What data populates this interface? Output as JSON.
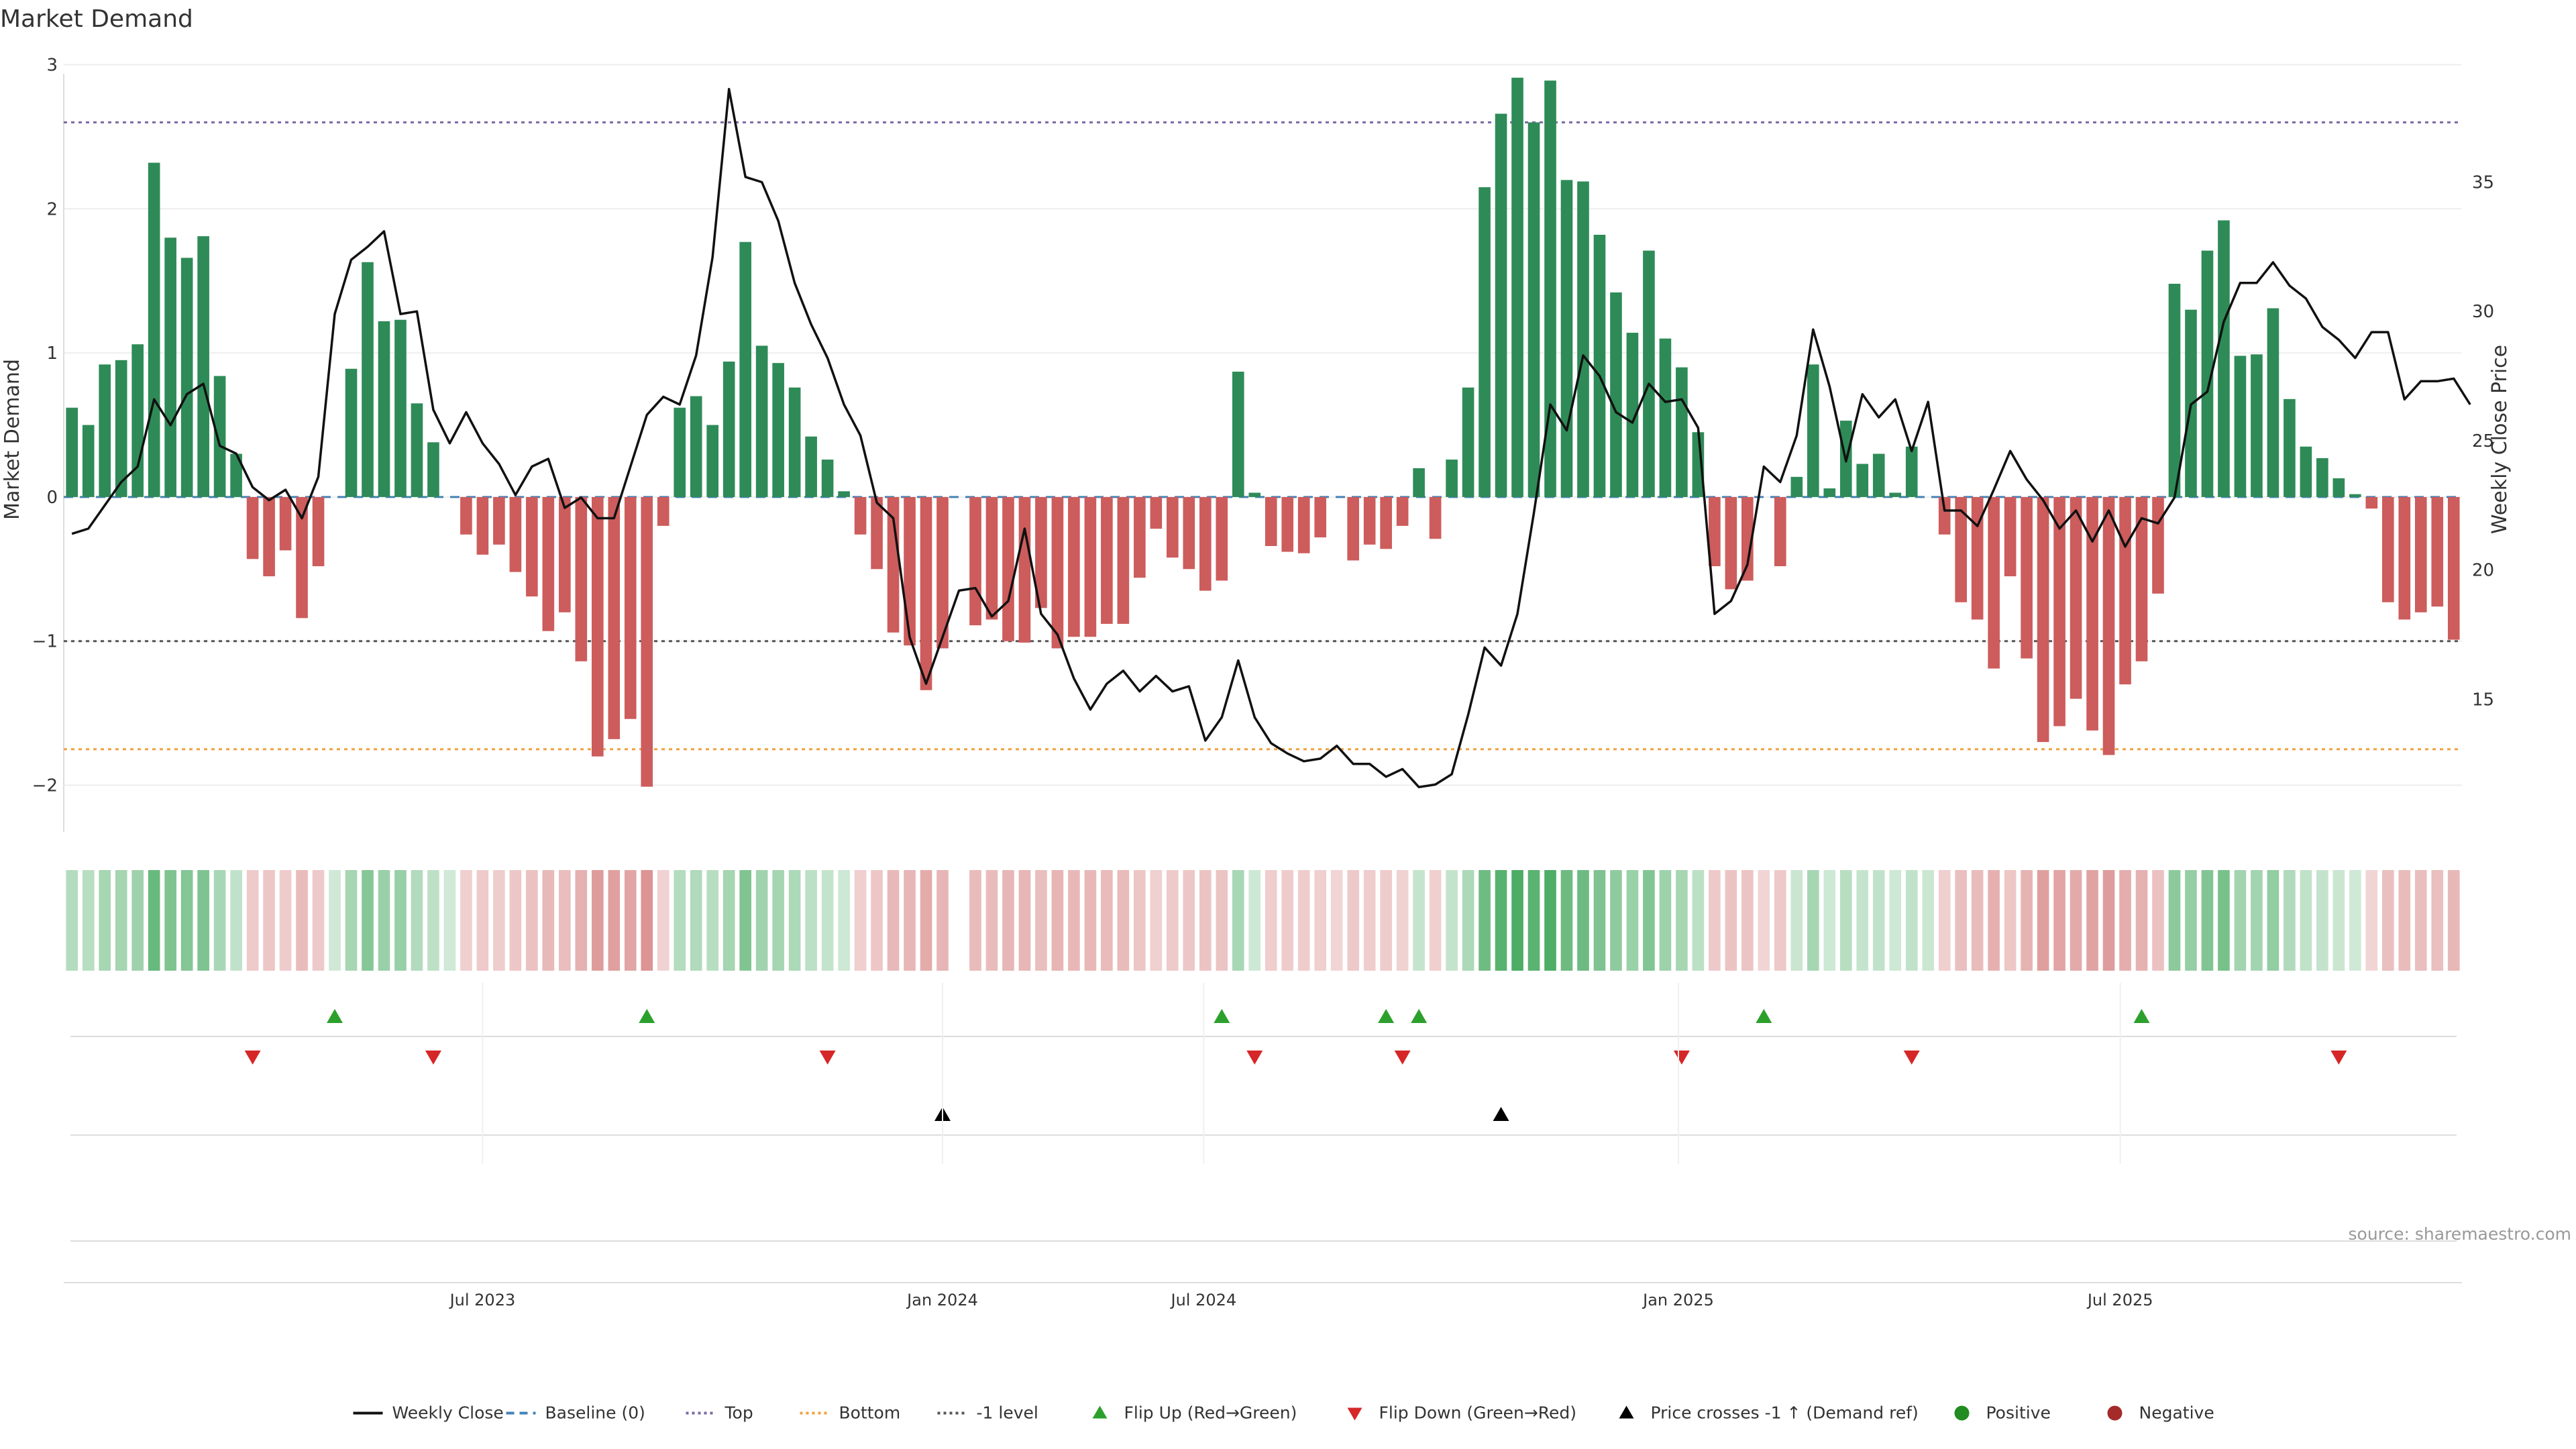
{
  "chart_data": {
    "type": "bar",
    "title": "Market Demand",
    "ylabel": "Market Demand",
    "y2label": "Weekly Close Price",
    "ylim": [
      -2.3,
      3.1
    ],
    "y_ticks": [
      "−2",
      "−1",
      "0",
      "1",
      "2",
      "3"
    ],
    "y2lim": [
      10,
      40.1
    ],
    "y2_ticks": [
      "15",
      "20",
      "25",
      "30",
      "35"
    ],
    "x_ticks": [
      "Jul 2023",
      "Jan 2024",
      "Jul 2024",
      "Jan 2025",
      "Jul 2025"
    ],
    "source": "source: sharemaestro.com",
    "levels": {
      "top": 2.6,
      "bottom": -1.75,
      "minus_one": -1,
      "baseline": 0
    },
    "series": [
      {
        "name": "Market Demand",
        "values": [
          0.62,
          0.5,
          0.92,
          0.95,
          1.06,
          2.32,
          1.8,
          1.66,
          1.81,
          0.84,
          0.3,
          -0.43,
          -0.55,
          -0.37,
          -0.84,
          -0.48,
          0,
          0.89,
          1.63,
          1.22,
          1.23,
          0.65,
          0.38,
          0,
          -0.26,
          -0.4,
          -0.33,
          -0.52,
          -0.69,
          -0.93,
          -0.8,
          -1.14,
          -1.8,
          -1.68,
          -1.54,
          -2.01,
          -0.2,
          0.62,
          0.7,
          0.5,
          0.94,
          1.77,
          1.05,
          0.93,
          0.76,
          0.42,
          0.26,
          0.04,
          -0.26,
          -0.5,
          -0.94,
          -1.03,
          -1.34,
          -1.05,
          0,
          -0.89,
          -0.85,
          -1.0,
          -1.01,
          -0.77,
          -1.05,
          -0.97,
          -0.97,
          -0.88,
          -0.88,
          -0.56,
          -0.22,
          -0.42,
          -0.5,
          -0.65,
          -0.58,
          0.87,
          0.03,
          -0.34,
          -0.38,
          -0.39,
          -0.28,
          0,
          -0.44,
          -0.33,
          -0.36,
          -0.2,
          0.2,
          -0.29,
          0.26,
          0.76,
          2.15,
          2.66,
          2.91,
          2.6,
          2.89,
          2.2,
          2.19,
          1.82,
          1.42,
          1.14,
          1.71,
          1.1,
          0.9,
          0.45,
          -0.48,
          -0.64,
          -0.58,
          0,
          -0.48,
          0.14,
          0.92,
          0.06,
          0.53,
          0.23,
          0.3,
          0.03,
          0.35,
          0,
          -0.26,
          -0.73,
          -0.85,
          -1.19,
          -0.55,
          -1.12,
          -1.7,
          -1.59,
          -1.4,
          -1.62,
          -1.79,
          -1.3,
          -1.14,
          -0.67,
          1.48,
          1.3,
          1.71,
          1.92,
          0.98,
          0.99,
          1.31,
          0.68,
          0.35,
          0.27,
          0.13,
          0.02,
          -0.08,
          -0.73,
          -0.85,
          -0.8,
          -0.76,
          -0.99
        ]
      },
      {
        "name": "Weekly Close",
        "values": [
          21.4,
          21.6,
          22.5,
          23.4,
          24,
          26.6,
          25.6,
          26.8,
          27.2,
          24.8,
          24.5,
          23.2,
          22.7,
          23.1,
          22,
          23.6,
          29.9,
          32,
          32.5,
          33.1,
          29.9,
          30,
          26.2,
          24.9,
          26.1,
          24.9,
          24.1,
          22.9,
          24,
          24.3,
          22.4,
          22.8,
          22,
          22,
          24,
          26,
          26.7,
          26.4,
          28.3,
          32.1,
          38.6,
          35.2,
          35,
          33.5,
          31.1,
          29.5,
          28.2,
          26.4,
          25.2,
          22.6,
          22,
          17.4,
          15.6,
          17.4,
          19.2,
          19.3,
          18.2,
          18.8,
          21.6,
          18.3,
          17.5,
          15.8,
          14.6,
          15.6,
          16.1,
          15.3,
          15.9,
          15.3,
          15.5,
          13.4,
          14.3,
          16.5,
          14.3,
          13.3,
          12.9,
          12.6,
          12.7,
          13.2,
          12.5,
          12.5,
          12,
          12.3,
          11.6,
          11.7,
          12.1,
          14.4,
          17,
          16.3,
          18.3,
          22.2,
          26.4,
          25.4,
          28.3,
          27.5,
          26.1,
          25.7,
          27.2,
          26.5,
          26.6,
          25.5,
          18.3,
          18.8,
          20.2,
          24,
          23.4,
          25.2,
          29.3,
          27.1,
          24.2,
          26.8,
          25.9,
          26.6,
          24.6,
          26.5,
          22.3,
          22.3,
          21.7,
          23.1,
          24.6,
          23.5,
          22.7,
          21.6,
          22.3,
          21.1,
          22.3,
          20.9,
          22,
          21.8,
          22.8,
          26.4,
          26.9,
          29.6,
          31.1,
          31.1,
          31.9,
          31,
          30.5,
          29.4,
          28.9,
          28.2,
          29.2,
          29.2,
          26.6,
          27.3,
          27.3,
          27.4,
          26.4
        ]
      }
    ],
    "shade_values": [
      0.62,
      0.5,
      0.92,
      0.95,
      1.06,
      2.32,
      1.8,
      1.66,
      1.81,
      0.84,
      0.3,
      -0.43,
      -0.55,
      -0.37,
      -0.84,
      -0.48,
      0,
      0.89,
      1.63,
      1.22,
      1.23,
      0.65,
      0.38,
      0,
      -0.26,
      -0.4,
      -0.33,
      -0.52,
      -0.69,
      -0.93,
      -0.8,
      -1.14,
      -1.8,
      -1.68,
      -1.54,
      -2.01,
      -0.2,
      0.62,
      0.7,
      0.5,
      0.94,
      1.77,
      1.05,
      0.93,
      0.76,
      0.42,
      0.26,
      0.04,
      -0.26,
      -0.5,
      -0.94,
      -1.03,
      -1.34,
      -1.05,
      null,
      -0.89,
      -0.85,
      -1.0,
      -1.01,
      -0.77,
      -1.05,
      -0.97,
      -0.97,
      -0.88,
      -0.88,
      -0.56,
      -0.22,
      -0.42,
      -0.5,
      -0.65,
      -0.58,
      0.87,
      0.03,
      -0.34,
      -0.38,
      -0.39,
      -0.28,
      -0.1,
      -0.44,
      -0.33,
      -0.36,
      -0.2,
      0.2,
      -0.29,
      0.26,
      0.76,
      2.15,
      2.66,
      2.91,
      2.6,
      2.89,
      2.2,
      2.19,
      1.82,
      1.42,
      1.14,
      1.71,
      1.1,
      0.9,
      0.45,
      -0.48,
      -0.64,
      -0.58,
      -0.1,
      -0.48,
      0.14,
      0.92,
      0.06,
      0.53,
      0.23,
      0.3,
      0.03,
      0.35,
      0.1,
      -0.26,
      -0.73,
      -0.85,
      -1.19,
      -0.55,
      -1.12,
      -1.7,
      -1.59,
      -1.4,
      -1.62,
      -1.79,
      -1.3,
      -1.14,
      -0.67,
      1.48,
      1.3,
      1.71,
      1.92,
      0.98,
      0.99,
      1.31,
      0.68,
      0.35,
      0.27,
      0.13,
      0.02,
      -0.08,
      -0.73,
      -0.85,
      -0.8,
      -0.76,
      -0.99
    ],
    "flip_up_weeks": [
      16,
      35,
      70,
      80,
      82,
      103,
      126
    ],
    "flip_down_weeks": [
      11,
      22,
      46,
      72,
      81,
      98,
      112,
      138
    ],
    "price_cross_weeks": [
      53,
      87
    ],
    "colors": {
      "positive": "#2e8b57",
      "negative": "#cd5c5c",
      "price": "#111111",
      "baseline": "#4682b4",
      "top": "#7b68a6",
      "bottom": "#f0a040",
      "minus_one": "#555555",
      "flip_up": "#2ca02c",
      "flip_down": "#d62728",
      "cross": "#000000",
      "positive_dot": "#228b22",
      "negative_dot": "#a52a2a"
    },
    "legend": [
      {
        "label": "Weekly Close",
        "marker": "line"
      },
      {
        "label": "Baseline (0)",
        "marker": "dash"
      },
      {
        "label": "Top",
        "marker": "dot-purple"
      },
      {
        "label": "Bottom",
        "marker": "dot-orange"
      },
      {
        "label": "-1 level",
        "marker": "dash-gray"
      },
      {
        "label": "Flip Up (Red→Green)",
        "marker": "tri-up-green"
      },
      {
        "label": "Flip Down (Green→Red)",
        "marker": "tri-down-red"
      },
      {
        "label": "Price crosses -1 ↑ (Demand ref)",
        "marker": "tri-up-black"
      },
      {
        "label": "Positive",
        "marker": "circle-green"
      },
      {
        "label": "Negative",
        "marker": "circle-red"
      }
    ]
  }
}
